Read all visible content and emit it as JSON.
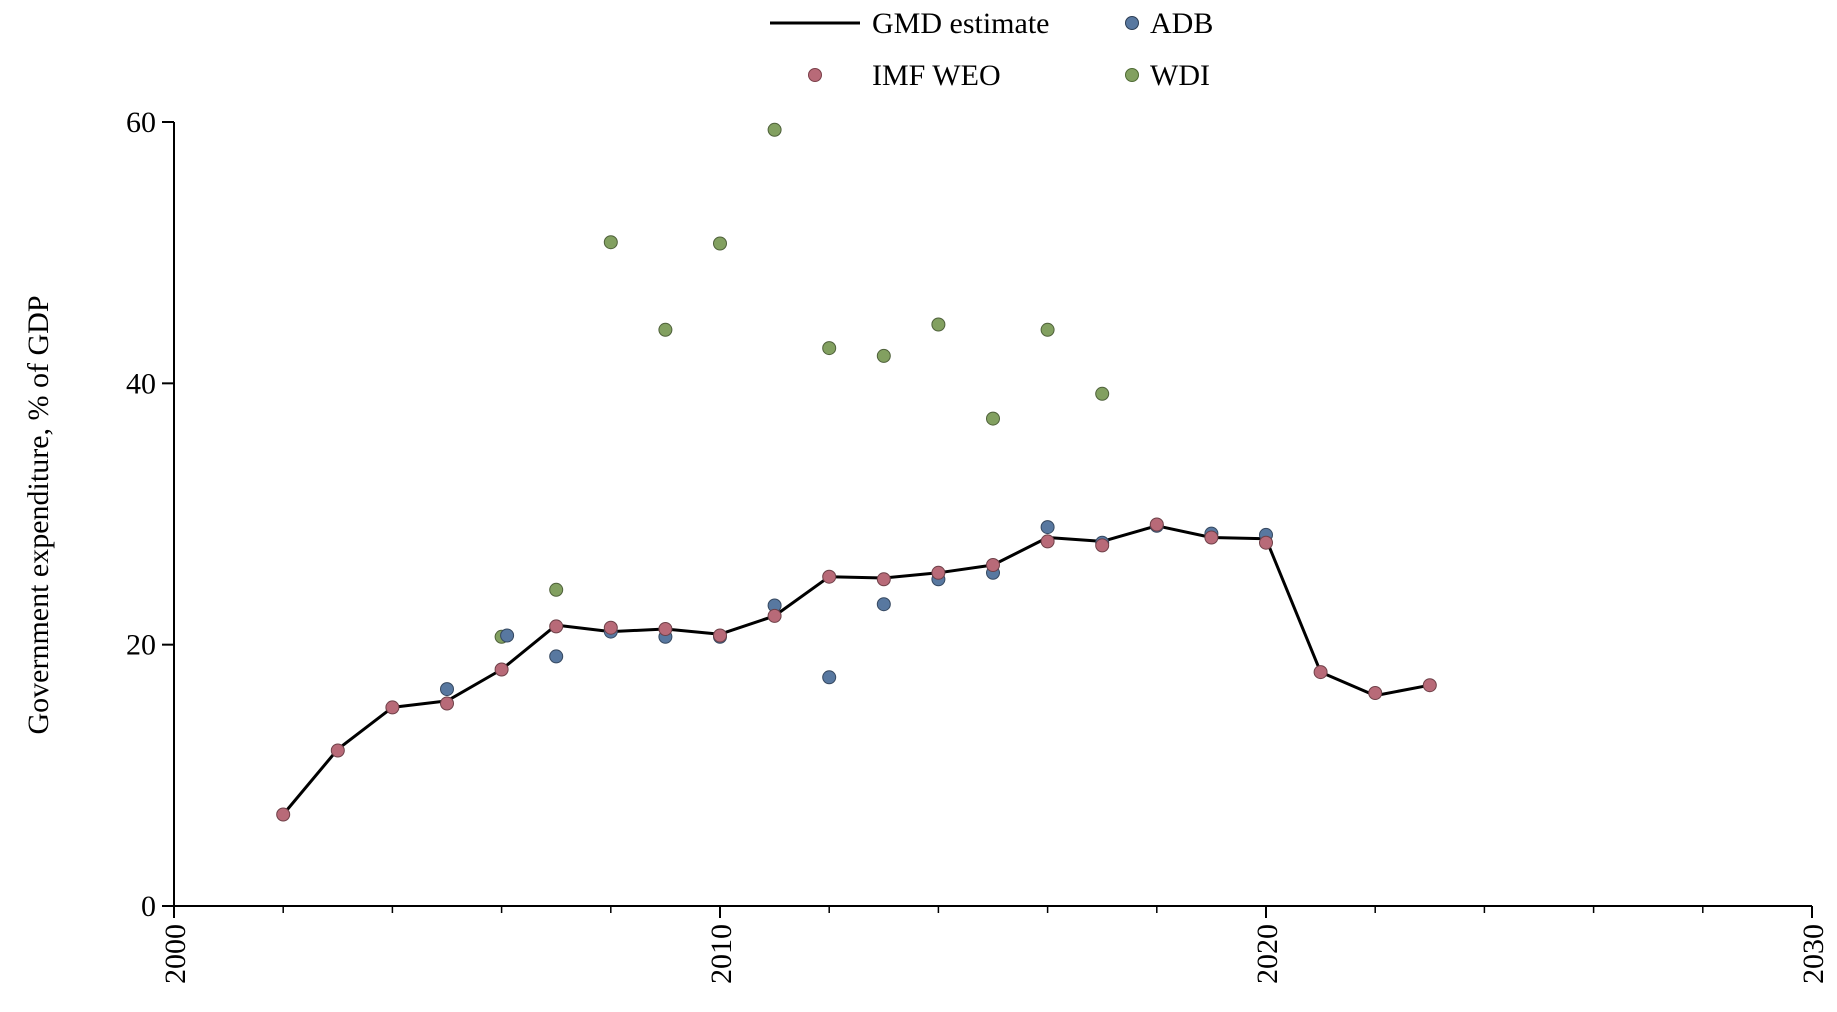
{
  "chart_data": {
    "type": "line",
    "title": "",
    "xlabel": "",
    "ylabel": "Government expenditure, % of GDP",
    "xlim": [
      2000,
      2030
    ],
    "ylim": [
      0,
      60
    ],
    "x_ticks": [
      2000,
      2010,
      2020,
      2030
    ],
    "y_ticks": [
      0,
      20,
      40,
      60
    ],
    "x_minor_step": 2,
    "grid": false,
    "legend_position": "top-center",
    "series": [
      {
        "name": "GMD estimate",
        "kind": "line",
        "color": "#000000",
        "points": [
          [
            2002,
            7.0
          ],
          [
            2003,
            12.0
          ],
          [
            2004,
            15.2
          ],
          [
            2005,
            15.7
          ],
          [
            2006,
            18.1
          ],
          [
            2007,
            21.5
          ],
          [
            2008,
            21.0
          ],
          [
            2009,
            21.2
          ],
          [
            2010,
            20.8
          ],
          [
            2011,
            22.2
          ],
          [
            2012,
            25.2
          ],
          [
            2013,
            25.1
          ],
          [
            2014,
            25.5
          ],
          [
            2015,
            26.1
          ],
          [
            2016,
            28.2
          ],
          [
            2017,
            27.9
          ],
          [
            2018,
            29.1
          ],
          [
            2019,
            28.2
          ],
          [
            2020,
            28.1
          ],
          [
            2021,
            17.9
          ],
          [
            2022,
            16.1
          ],
          [
            2023,
            16.9
          ]
        ]
      },
      {
        "name": "ADB",
        "kind": "scatter",
        "color": "#5878a0",
        "points": [
          [
            2005,
            16.6
          ],
          [
            2006.1,
            20.7
          ],
          [
            2007,
            19.1
          ],
          [
            2008,
            21.0
          ],
          [
            2009,
            20.6
          ],
          [
            2010,
            20.6
          ],
          [
            2011,
            23.0
          ],
          [
            2012,
            17.5
          ],
          [
            2013,
            23.1
          ],
          [
            2014,
            25.0
          ],
          [
            2015,
            25.5
          ],
          [
            2016,
            29.0
          ],
          [
            2017,
            27.8
          ],
          [
            2018,
            29.1
          ],
          [
            2019,
            28.5
          ],
          [
            2020,
            28.4
          ]
        ]
      },
      {
        "name": "IMF WEO",
        "kind": "scatter",
        "color": "#b86a78",
        "points": [
          [
            2002,
            7.0
          ],
          [
            2003,
            11.9
          ],
          [
            2004,
            15.2
          ],
          [
            2005,
            15.5
          ],
          [
            2006,
            18.1
          ],
          [
            2007,
            21.4
          ],
          [
            2008,
            21.3
          ],
          [
            2009,
            21.2
          ],
          [
            2010,
            20.7
          ],
          [
            2011,
            22.2
          ],
          [
            2012,
            25.2
          ],
          [
            2013,
            25.0
          ],
          [
            2014,
            25.5
          ],
          [
            2015,
            26.1
          ],
          [
            2016,
            27.9
          ],
          [
            2017,
            27.6
          ],
          [
            2018,
            29.2
          ],
          [
            2019,
            28.2
          ],
          [
            2020,
            27.8
          ],
          [
            2021,
            17.9
          ],
          [
            2022,
            16.3
          ],
          [
            2023,
            16.9
          ]
        ]
      },
      {
        "name": "WDI",
        "kind": "scatter",
        "color": "#82a060",
        "points": [
          [
            2006,
            20.6
          ],
          [
            2007,
            24.2
          ],
          [
            2008,
            50.8
          ],
          [
            2009,
            44.1
          ],
          [
            2010,
            50.7
          ],
          [
            2011,
            59.4
          ],
          [
            2012,
            42.7
          ],
          [
            2013,
            42.1
          ],
          [
            2014,
            44.5
          ],
          [
            2015,
            37.3
          ],
          [
            2016,
            44.1
          ],
          [
            2017,
            39.2
          ]
        ]
      }
    ]
  }
}
